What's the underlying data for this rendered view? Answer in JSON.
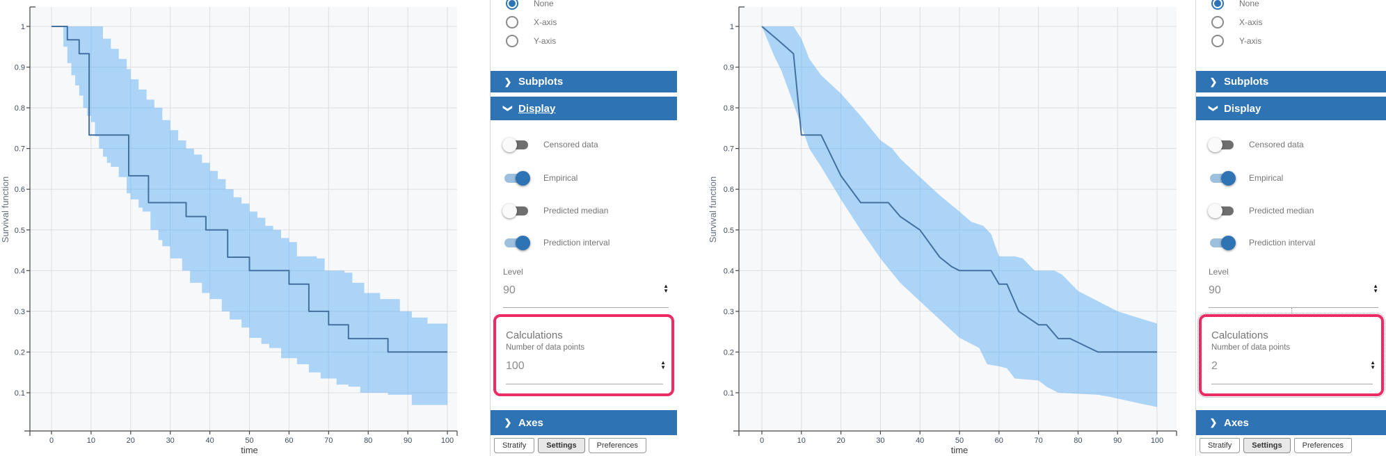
{
  "colors": {
    "accent_blue": "#2e74b5",
    "band_blue": "rgba(77,168,245,0.45)",
    "line_blue": "#44709d",
    "highlight_pink": "#ec2a63",
    "plot_background": "#f7f8fa",
    "grid": "#dcdee2"
  },
  "ui": {
    "panels": [
      {
        "radio": {
          "options": [
            {
              "label": "None",
              "selected": true
            },
            {
              "label": "X-axis",
              "selected": false
            },
            {
              "label": "Y-axis",
              "selected": false
            }
          ]
        },
        "sections": {
          "subplots": "Subplots",
          "display": "Display",
          "axes": "Axes"
        },
        "display_underlined": true,
        "toggles": [
          {
            "label": "Censored data",
            "on": false
          },
          {
            "label": "Empirical",
            "on": true
          },
          {
            "label": "Predicted median",
            "on": false
          },
          {
            "label": "Prediction interval",
            "on": true
          }
        ],
        "level": {
          "label": "Level",
          "value": "90"
        },
        "calculations": {
          "title": "Calculations",
          "sublabel": "Number of data points",
          "value": "100",
          "highlighted": true,
          "marquee": false
        },
        "tabs": [
          {
            "label": "Stratify",
            "selected": false
          },
          {
            "label": "Settings",
            "selected": true
          },
          {
            "label": "Preferences",
            "selected": false
          }
        ]
      },
      {
        "radio": {
          "options": [
            {
              "label": "None",
              "selected": true
            },
            {
              "label": "X-axis",
              "selected": false
            },
            {
              "label": "Y-axis",
              "selected": false
            }
          ]
        },
        "sections": {
          "subplots": "Subplots",
          "display": "Display",
          "axes": "Axes"
        },
        "display_underlined": false,
        "toggles": [
          {
            "label": "Censored data",
            "on": false
          },
          {
            "label": "Empirical",
            "on": true
          },
          {
            "label": "Predicted median",
            "on": false
          },
          {
            "label": "Prediction interval",
            "on": true
          }
        ],
        "level": {
          "label": "Level",
          "value": "90"
        },
        "calculations": {
          "title": "Calculations",
          "sublabel": "Number of data points",
          "value": "2",
          "highlighted": true,
          "marquee": true
        },
        "tabs": [
          {
            "label": "Stratify",
            "selected": false
          },
          {
            "label": "Settings",
            "selected": true
          },
          {
            "label": "Preferences",
            "selected": false
          }
        ]
      }
    ]
  },
  "chart_data": [
    {
      "type": "line",
      "title": "",
      "xlabel": "time",
      "ylabel": "Survival function",
      "xticks": [
        0,
        10,
        20,
        30,
        40,
        50,
        60,
        70,
        80,
        90,
        100
      ],
      "yticks": [
        0.1,
        0.2,
        0.3,
        0.4,
        0.5,
        0.6,
        0.7,
        0.8,
        0.9,
        1.0
      ],
      "xlim": [
        -5,
        104
      ],
      "ylim": [
        0.03,
        1.06
      ],
      "grid": true,
      "legend": "none",
      "interpolation": "step",
      "band_level": 90,
      "number_of_data_points": 100,
      "series": [
        {
          "name": "Empirical",
          "points": [
            [
              0,
              1
            ],
            [
              4,
              0.967
            ],
            [
              7,
              0.933
            ],
            [
              9.5,
              0.733
            ],
            [
              19.5,
              0.633
            ],
            [
              24.5,
              0.567
            ],
            [
              34,
              0.533
            ],
            [
              39,
              0.5
            ],
            [
              44.5,
              0.433
            ],
            [
              50,
              0.4
            ],
            [
              60,
              0.367
            ],
            [
              65,
              0.3
            ],
            [
              70,
              0.267
            ],
            [
              75,
              0.233
            ],
            [
              85,
              0.2
            ],
            [
              100,
              0.2
            ]
          ]
        },
        {
          "name": "Prediction interval upper",
          "points": [
            [
              2,
              1
            ],
            [
              13,
              0.97
            ],
            [
              15,
              0.945
            ],
            [
              17,
              0.92
            ],
            [
              19,
              0.895
            ],
            [
              20,
              0.87
            ],
            [
              22,
              0.845
            ],
            [
              24,
              0.82
            ],
            [
              26,
              0.8
            ],
            [
              28,
              0.77
            ],
            [
              30,
              0.745
            ],
            [
              32,
              0.72
            ],
            [
              34,
              0.7
            ],
            [
              36,
              0.685
            ],
            [
              38,
              0.665
            ],
            [
              40,
              0.645
            ],
            [
              42,
              0.625
            ],
            [
              44,
              0.6
            ],
            [
              46,
              0.58
            ],
            [
              48,
              0.565
            ],
            [
              50,
              0.545
            ],
            [
              52,
              0.53
            ],
            [
              54,
              0.51
            ],
            [
              56,
              0.5
            ],
            [
              58,
              0.48
            ],
            [
              60,
              0.47
            ],
            [
              62,
              0.435
            ],
            [
              67,
              0.43
            ],
            [
              69,
              0.4
            ],
            [
              74,
              0.395
            ],
            [
              76,
              0.37
            ],
            [
              79,
              0.345
            ],
            [
              83,
              0.33
            ],
            [
              88,
              0.3
            ],
            [
              91,
              0.285
            ],
            [
              95,
              0.27
            ],
            [
              100,
              0.265
            ]
          ]
        },
        {
          "name": "Prediction interval lower",
          "points": [
            [
              2,
              1
            ],
            [
              3,
              0.95
            ],
            [
              4,
              0.91
            ],
            [
              5,
              0.88
            ],
            [
              6,
              0.855
            ],
            [
              7,
              0.83
            ],
            [
              8,
              0.8
            ],
            [
              9,
              0.78
            ],
            [
              10,
              0.765
            ],
            [
              11,
              0.73
            ],
            [
              12,
              0.7
            ],
            [
              13,
              0.68
            ],
            [
              14,
              0.665
            ],
            [
              15,
              0.655
            ],
            [
              17,
              0.63
            ],
            [
              19,
              0.59
            ],
            [
              20,
              0.575
            ],
            [
              22,
              0.555
            ],
            [
              23,
              0.545
            ],
            [
              25,
              0.5
            ],
            [
              27,
              0.475
            ],
            [
              28,
              0.46
            ],
            [
              30,
              0.43
            ],
            [
              33,
              0.4
            ],
            [
              35,
              0.37
            ],
            [
              38,
              0.345
            ],
            [
              40,
              0.33
            ],
            [
              43,
              0.3
            ],
            [
              45,
              0.28
            ],
            [
              48,
              0.26
            ],
            [
              50,
              0.235
            ],
            [
              53,
              0.22
            ],
            [
              55,
              0.21
            ],
            [
              58,
              0.185
            ],
            [
              62,
              0.17
            ],
            [
              65,
              0.15
            ],
            [
              68,
              0.135
            ],
            [
              72,
              0.12
            ],
            [
              75,
              0.115
            ],
            [
              78,
              0.1
            ],
            [
              85,
              0.095
            ],
            [
              91,
              0.07
            ],
            [
              100,
              0.065
            ]
          ]
        }
      ]
    },
    {
      "type": "line",
      "title": "",
      "xlabel": "time",
      "ylabel": "Survival function",
      "xticks": [
        0,
        10,
        20,
        30,
        40,
        50,
        60,
        70,
        80,
        90,
        100
      ],
      "yticks": [
        0.1,
        0.2,
        0.3,
        0.4,
        0.5,
        0.6,
        0.7,
        0.8,
        0.9,
        1.0
      ],
      "xlim": [
        -5,
        104
      ],
      "ylim": [
        0.03,
        1.06
      ],
      "grid": true,
      "legend": "none",
      "interpolation": "linear",
      "band_level": 90,
      "number_of_data_points": 2,
      "series": [
        {
          "name": "Empirical",
          "points": [
            [
              0,
              1
            ],
            [
              4,
              0.967
            ],
            [
              8,
              0.933
            ],
            [
              10,
              0.733
            ],
            [
              15,
              0.733
            ],
            [
              20,
              0.633
            ],
            [
              25,
              0.567
            ],
            [
              32,
              0.567
            ],
            [
              35,
              0.533
            ],
            [
              40,
              0.5
            ],
            [
              45,
              0.433
            ],
            [
              48,
              0.41
            ],
            [
              50,
              0.4
            ],
            [
              58,
              0.4
            ],
            [
              60,
              0.367
            ],
            [
              62,
              0.367
            ],
            [
              65,
              0.3
            ],
            [
              70,
              0.267
            ],
            [
              72,
              0.267
            ],
            [
              75,
              0.233
            ],
            [
              78,
              0.233
            ],
            [
              85,
              0.2
            ],
            [
              100,
              0.2
            ]
          ]
        },
        {
          "name": "Prediction interval upper",
          "points": [
            [
              0,
              1
            ],
            [
              8,
              1
            ],
            [
              10,
              0.97
            ],
            [
              12,
              0.92
            ],
            [
              15,
              0.88
            ],
            [
              20,
              0.835
            ],
            [
              25,
              0.78
            ],
            [
              30,
              0.72
            ],
            [
              33,
              0.7
            ],
            [
              35,
              0.675
            ],
            [
              40,
              0.63
            ],
            [
              45,
              0.585
            ],
            [
              50,
              0.545
            ],
            [
              53,
              0.52
            ],
            [
              56,
              0.51
            ],
            [
              58,
              0.49
            ],
            [
              60,
              0.435
            ],
            [
              64,
              0.435
            ],
            [
              66,
              0.43
            ],
            [
              69,
              0.4
            ],
            [
              74,
              0.4
            ],
            [
              76,
              0.39
            ],
            [
              80,
              0.35
            ],
            [
              85,
              0.325
            ],
            [
              90,
              0.3
            ],
            [
              95,
              0.285
            ],
            [
              100,
              0.27
            ]
          ]
        },
        {
          "name": "Prediction interval lower",
          "points": [
            [
              0,
              1
            ],
            [
              3,
              0.93
            ],
            [
              5,
              0.89
            ],
            [
              8,
              0.81
            ],
            [
              10,
              0.755
            ],
            [
              12,
              0.7
            ],
            [
              15,
              0.655
            ],
            [
              20,
              0.575
            ],
            [
              25,
              0.5
            ],
            [
              30,
              0.43
            ],
            [
              35,
              0.37
            ],
            [
              40,
              0.325
            ],
            [
              45,
              0.28
            ],
            [
              50,
              0.235
            ],
            [
              55,
              0.21
            ],
            [
              57,
              0.17
            ],
            [
              60,
              0.165
            ],
            [
              62,
              0.16
            ],
            [
              64,
              0.135
            ],
            [
              70,
              0.13
            ],
            [
              72,
              0.115
            ],
            [
              75,
              0.1
            ],
            [
              85,
              0.095
            ],
            [
              88,
              0.09
            ],
            [
              95,
              0.075
            ],
            [
              100,
              0.065
            ]
          ]
        }
      ]
    }
  ]
}
